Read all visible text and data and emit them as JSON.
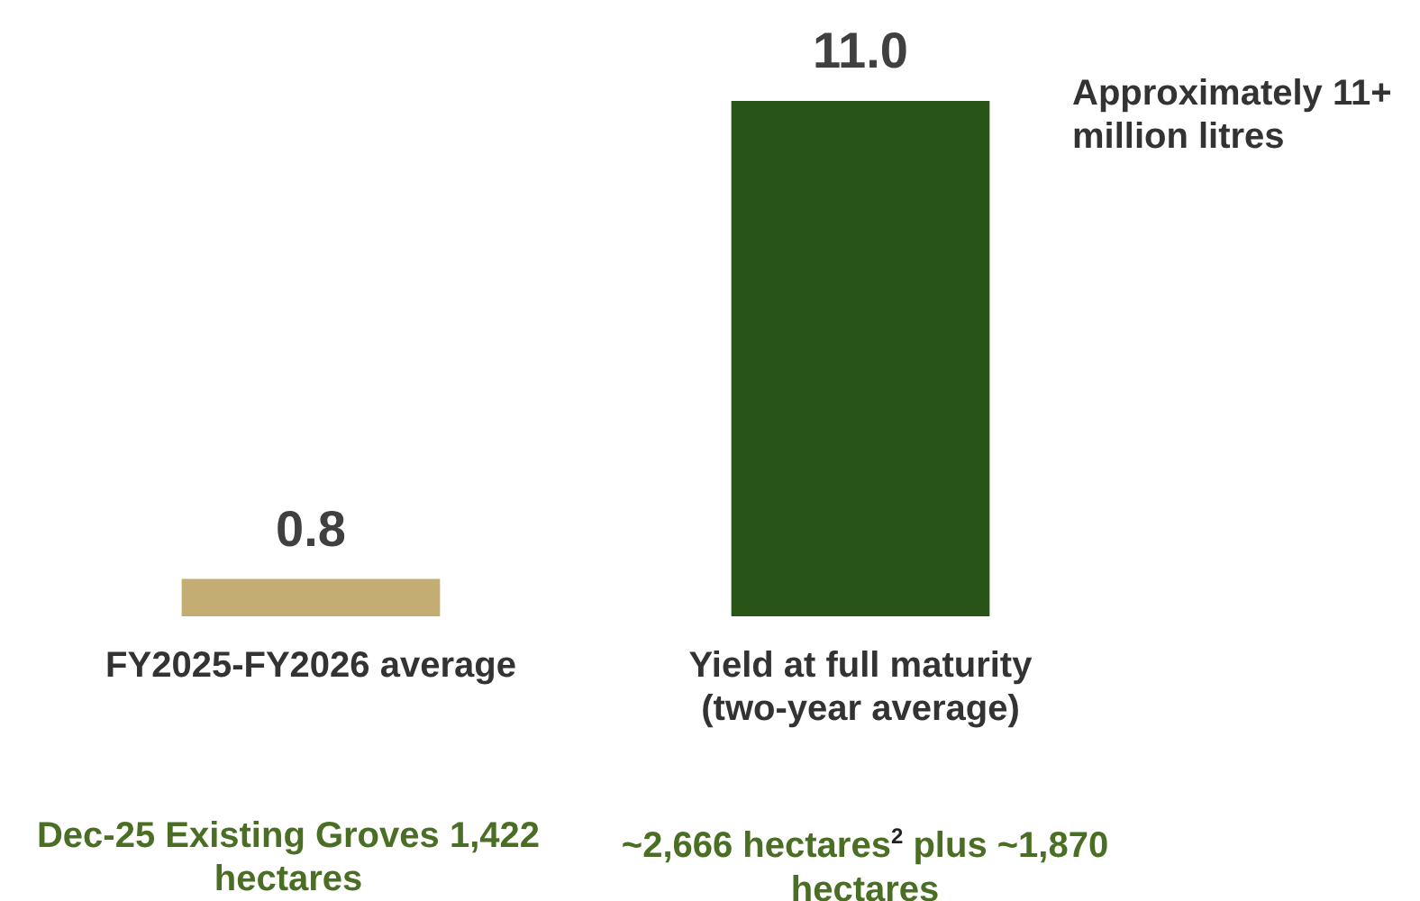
{
  "chart_data": {
    "type": "bar",
    "categories": [
      "FY2025-FY2026 average",
      "Yield at full maturity (two-year average)"
    ],
    "values": [
      0.8,
      11.0
    ],
    "colors": [
      "#c4ad72",
      "#285417"
    ],
    "value_labels": [
      "0.8",
      "11.0"
    ],
    "annotations": [
      "Approximately 11+ million litres",
      "Dec-25 Existing Groves 1,422 hectares",
      "~2,666 hectares$^{2}$ plus ~1,870 hectares"
    ],
    "grid": false,
    "legend": false,
    "tick_labels": "x"
  }
}
